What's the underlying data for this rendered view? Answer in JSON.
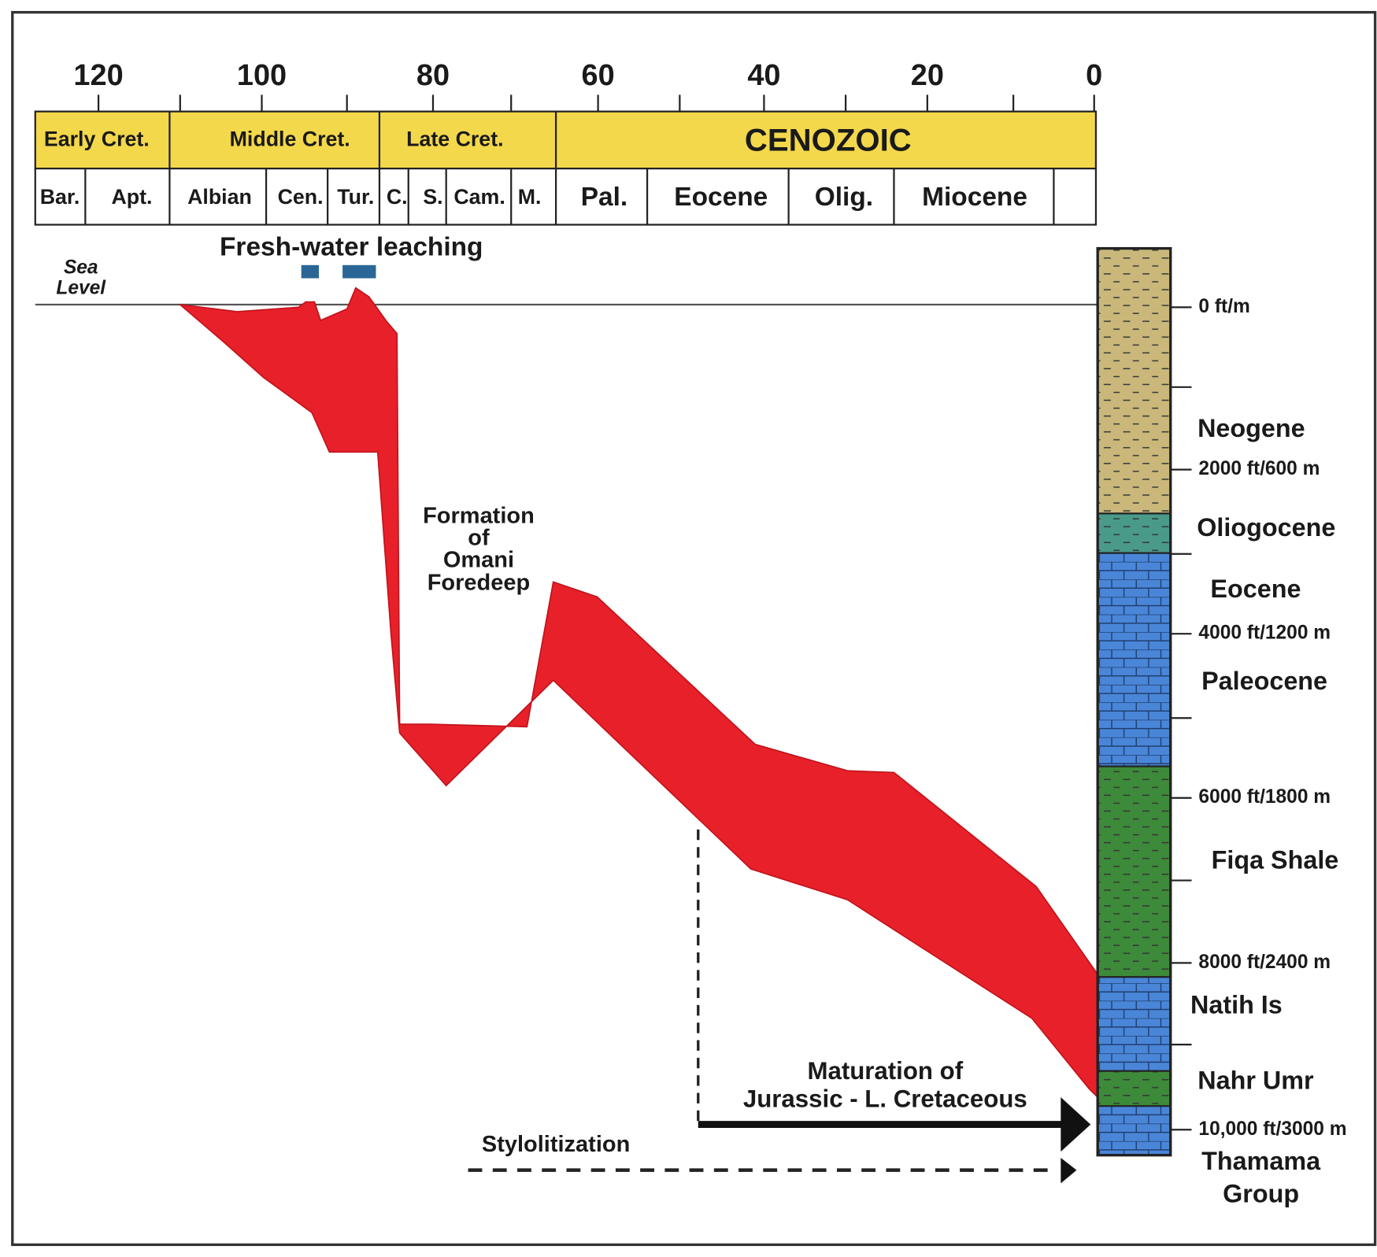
{
  "time_axis": {
    "ticks": [
      120,
      100,
      80,
      60,
      40,
      20,
      0
    ]
  },
  "eras": [
    "Early Cret.",
    "Middle Cret.",
    "Late Cret.",
    "CENOZOIC"
  ],
  "stages": [
    "Bar.",
    "Apt.",
    "Albian",
    "Cen.",
    "Tur.",
    "C.",
    "S.",
    "Cam.",
    "M.",
    "Pal.",
    "Eocene",
    "Olig.",
    "Miocene"
  ],
  "annotations": {
    "fresh_water": "Fresh-water leaching",
    "sea_level": [
      "Sea",
      "Level"
    ],
    "foredeep": [
      "Formation",
      "of",
      "Omani",
      "Foredeep"
    ],
    "maturation": [
      "Maturation of",
      "Jurassic - L. Cretaceous"
    ],
    "stylolitization": "Stylolitization"
  },
  "depth_scale": [
    "0 ft/m",
    "2000 ft/600 m",
    "4000 ft/1200 m",
    "6000 ft/1800 m",
    "8000 ft/2400 m",
    "10,000 ft/3000 m"
  ],
  "column_units": [
    "Neogene",
    "Oliogocene",
    "Eocene",
    "Paleocene",
    "Fiqa Shale",
    "Natih Is",
    "Nahr Umr",
    "Thamama",
    "Group"
  ]
}
